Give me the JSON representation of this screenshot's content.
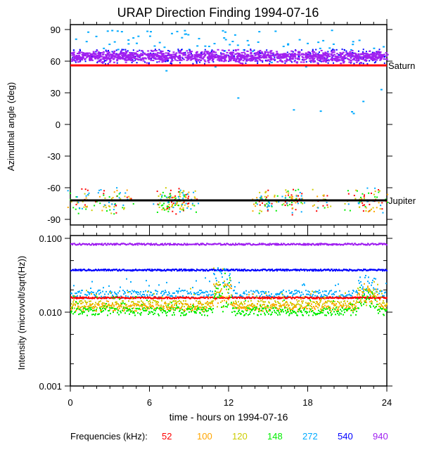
{
  "chart_data": [
    {
      "type": "scatter",
      "title": "URAP Direction Finding  1994-07-16",
      "xlabel": "",
      "ylabel": "Azimuthal angle (deg)",
      "xlim": [
        0,
        24
      ],
      "ylim": [
        -90,
        95
      ],
      "yticks": [
        "90",
        "60",
        "30",
        "0",
        "-30",
        "-60",
        "-90"
      ],
      "annotations": [
        {
          "label": "Saturn",
          "y": 56,
          "color": "#ff0000"
        },
        {
          "label": "Jupiter",
          "y": -72,
          "color": "#000000"
        }
      ],
      "series": [
        {
          "name": "940",
          "band_center": 65,
          "band_spread": 5
        },
        {
          "name": "540",
          "band_center": 65,
          "band_spread": 5
        },
        {
          "name": "272",
          "scatter": "sparse 25-90 and -90 to -60"
        },
        {
          "name": "148",
          "band_center": -72,
          "band_spread": 8
        },
        {
          "name": "120",
          "band_center": -72,
          "band_spread": 8
        },
        {
          "name": "100",
          "band_center": -72,
          "band_spread": 8
        },
        {
          "name": "52",
          "band_center": -72,
          "band_spread": 8
        }
      ]
    },
    {
      "type": "scatter",
      "title": "",
      "xlabel": "time - hours on 1994-07-16",
      "ylabel": "Intensity (microvolt/sqrt(Hz))",
      "xlim": [
        0,
        24
      ],
      "ylim": [
        0.001,
        0.1
      ],
      "yscale": "log",
      "yticks": [
        "0.100",
        "0.010",
        "0.001"
      ],
      "xticks": [
        "0",
        "6",
        "12",
        "18",
        "24"
      ],
      "series": [
        {
          "name": "940",
          "typical": 0.085
        },
        {
          "name": "540",
          "typical": 0.038
        },
        {
          "name": "272",
          "typical": 0.018
        },
        {
          "name": "52",
          "typical": 0.016
        },
        {
          "name": "120",
          "typical": 0.013
        },
        {
          "name": "100",
          "typical": 0.012
        },
        {
          "name": "148",
          "typical": 0.0105
        }
      ]
    }
  ],
  "legend": {
    "label": "Frequencies (kHz):",
    "items": [
      {
        "name": "52",
        "color": "#ff0000"
      },
      {
        "name": "100",
        "color": "#ffa500"
      },
      {
        "name": "120",
        "color": "#cccc00"
      },
      {
        "name": "148",
        "color": "#00ee00"
      },
      {
        "name": "272",
        "color": "#00aaff"
      },
      {
        "name": "540",
        "color": "#0000ff"
      },
      {
        "name": "940",
        "color": "#a020f0"
      }
    ]
  }
}
